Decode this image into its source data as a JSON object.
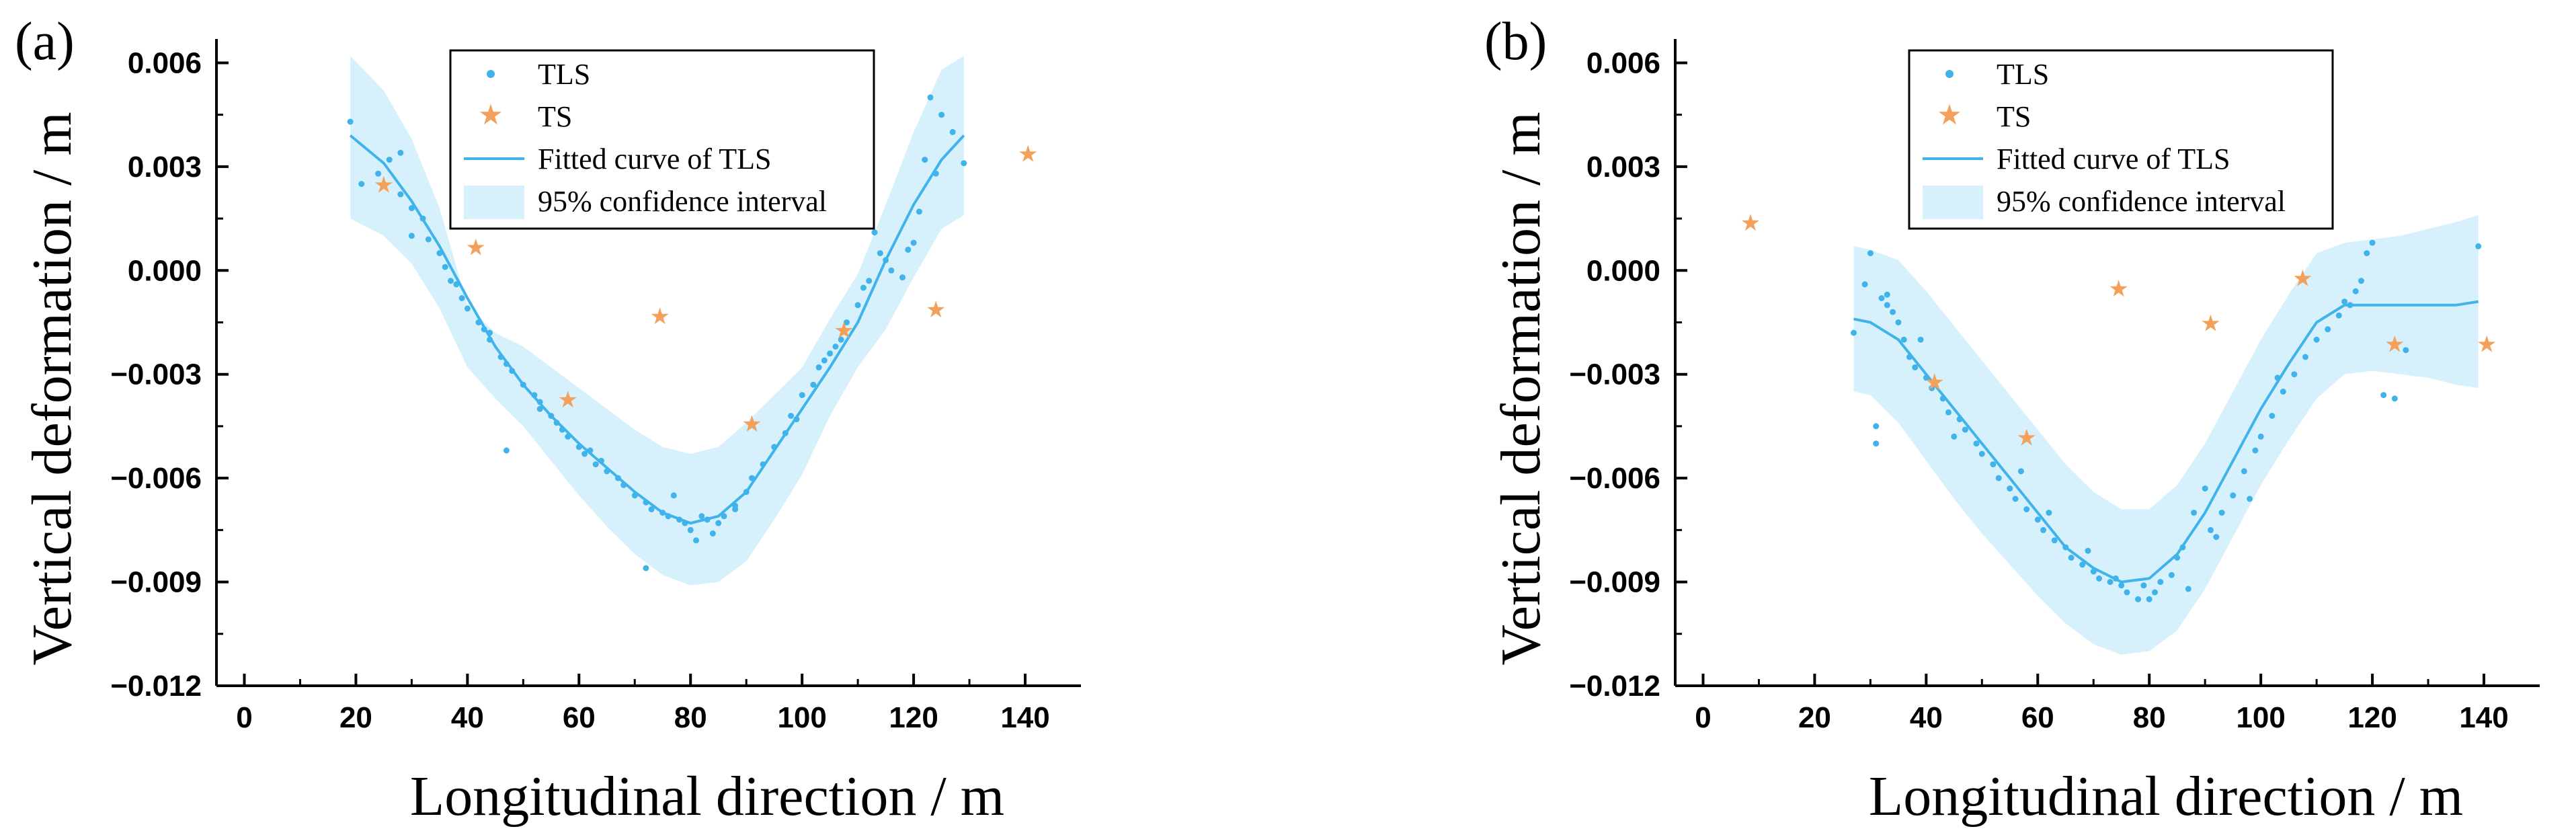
{
  "chart_data": [
    {
      "type": "scatter",
      "panel_label": "(a)",
      "xlabel": "Longitudinal direction / m",
      "ylabel": "Vertical deformation / m",
      "xlim": [
        -5,
        150
      ],
      "ylim": [
        -0.012,
        0.0063
      ],
      "x_ticks": [
        0,
        20,
        40,
        60,
        80,
        100,
        120,
        140
      ],
      "x_tick_labels": [
        "0",
        "20",
        "40",
        "60",
        "80",
        "100",
        "120",
        "140"
      ],
      "y_ticks": [
        0.006,
        0.003,
        0.0,
        -0.003,
        -0.006,
        -0.009,
        -0.012
      ],
      "y_tick_labels": [
        "0.006",
        "0.003",
        "0.000",
        "−0.003",
        "−0.006",
        "−0.009",
        "−0.012"
      ],
      "legend": {
        "position": "top-center",
        "entries": [
          "TLS",
          "TS",
          "Fitted curve of TLS",
          "95% confidence interval"
        ]
      },
      "colors": {
        "tls": "#3fb3ea",
        "ts": "#f2a05a",
        "fit": "#3fb3ea",
        "ci": "#d6f1fc"
      },
      "series": [
        {
          "name": "TLS",
          "kind": "points",
          "x": [
            19,
            21,
            24,
            26,
            28,
            30,
            32,
            33,
            35,
            36,
            38,
            39,
            40,
            42,
            43,
            44,
            46,
            47,
            48,
            50,
            52,
            53,
            55,
            57,
            58,
            60,
            61,
            63,
            65,
            67,
            68,
            70,
            72,
            73,
            75,
            76,
            78,
            79,
            80,
            81,
            82,
            83,
            85,
            86,
            88,
            90,
            91,
            93,
            95,
            97,
            98,
            100,
            102,
            103,
            105,
            107,
            108,
            110,
            111,
            113,
            114,
            116,
            118,
            119,
            121,
            122,
            123,
            125,
            127,
            129,
            47,
            72,
            64,
            84,
            37,
            56,
            99,
            106,
            115,
            120,
            30,
            44,
            62,
            88,
            112,
            124,
            28,
            77,
            53,
            104
          ],
          "y": [
            0.0043,
            0.0025,
            0.0028,
            0.0032,
            0.0034,
            0.0018,
            0.0015,
            0.0009,
            0.0005,
            0.0001,
            -0.0004,
            -0.0008,
            -0.0011,
            -0.0015,
            -0.0017,
            -0.002,
            -0.0025,
            -0.0027,
            -0.0029,
            -0.0033,
            -0.0036,
            -0.0038,
            -0.0042,
            -0.0046,
            -0.0048,
            -0.0051,
            -0.0053,
            -0.0056,
            -0.0058,
            -0.006,
            -0.0062,
            -0.0065,
            -0.0067,
            -0.0069,
            -0.007,
            -0.0071,
            -0.0072,
            -0.0073,
            -0.0075,
            -0.0078,
            -0.0071,
            -0.0072,
            -0.0073,
            -0.0071,
            -0.0069,
            -0.0064,
            -0.006,
            -0.0056,
            -0.0051,
            -0.0047,
            -0.0042,
            -0.0036,
            -0.0033,
            -0.0028,
            -0.0024,
            -0.002,
            -0.0015,
            -0.001,
            -0.0005,
            0.0011,
            0.0005,
            0.0,
            -0.0002,
            0.0006,
            0.0017,
            0.0032,
            0.005,
            0.0045,
            0.004,
            0.0031,
            -0.0052,
            -0.0086,
            -0.0055,
            -0.0076,
            -0.0003,
            -0.0044,
            -0.0043,
            -0.0022,
            0.0003,
            0.0008,
            0.001,
            -0.0018,
            -0.0052,
            -0.0068,
            -0.0003,
            0.0028,
            0.0022,
            -0.0065,
            -0.004,
            -0.0026
          ]
        },
        {
          "name": "TS",
          "kind": "points",
          "x": [
            25,
            41.5,
            58,
            74.5,
            91,
            107.5,
            124,
            140.5
          ],
          "y": [
            0.0025,
            0.0007,
            -0.0037,
            -0.0013,
            -0.0044,
            -0.0017,
            -0.0011,
            0.0034
          ]
        },
        {
          "name": "Fitted curve of TLS",
          "kind": "line",
          "x": [
            19,
            25,
            30,
            35,
            40,
            45,
            50,
            55,
            60,
            65,
            70,
            75,
            80,
            85,
            90,
            95,
            100,
            105,
            110,
            115,
            120,
            125,
            129
          ],
          "y": [
            0.0039,
            0.0031,
            0.002,
            0.0007,
            -0.0008,
            -0.0022,
            -0.0033,
            -0.0042,
            -0.005,
            -0.0057,
            -0.0064,
            -0.007,
            -0.0073,
            -0.0071,
            -0.0064,
            -0.0052,
            -0.004,
            -0.0028,
            -0.0015,
            0.0003,
            0.0019,
            0.0032,
            0.0039
          ]
        },
        {
          "name": "95% confidence interval",
          "kind": "band",
          "x": [
            19,
            25,
            30,
            35,
            40,
            45,
            50,
            55,
            60,
            65,
            70,
            75,
            80,
            85,
            90,
            95,
            100,
            105,
            110,
            115,
            120,
            125,
            129
          ],
          "upper": [
            0.0062,
            0.0052,
            0.0038,
            0.0018,
            -0.001,
            -0.0018,
            -0.0022,
            -0.0028,
            -0.0034,
            -0.004,
            -0.0046,
            -0.0051,
            -0.0053,
            -0.0051,
            -0.0044,
            -0.0036,
            -0.0028,
            -0.0014,
            -0.0001,
            0.0019,
            0.004,
            0.0058,
            0.0062
          ],
          "lower": [
            0.0015,
            0.001,
            0.0002,
            -0.0011,
            -0.0028,
            -0.0037,
            -0.0045,
            -0.0055,
            -0.0065,
            -0.0074,
            -0.0082,
            -0.0088,
            -0.0091,
            -0.009,
            -0.0084,
            -0.0072,
            -0.0059,
            -0.0042,
            -0.0028,
            -0.0017,
            -0.0002,
            0.0012,
            0.0016
          ]
        }
      ]
    },
    {
      "type": "scatter",
      "panel_label": "(b)",
      "xlabel": "Longitudinal direction / m",
      "ylabel": "Vertical deformation / m",
      "xlim": [
        -5,
        150
      ],
      "ylim": [
        -0.012,
        0.0063
      ],
      "x_ticks": [
        0,
        20,
        40,
        60,
        80,
        100,
        120,
        140
      ],
      "x_tick_labels": [
        "0",
        "20",
        "40",
        "60",
        "80",
        "100",
        "120",
        "140"
      ],
      "y_ticks": [
        0.006,
        0.003,
        0.0,
        -0.003,
        -0.006,
        -0.009,
        -0.012
      ],
      "y_tick_labels": [
        "0.006",
        "0.003",
        "0.000",
        "−0.003",
        "−0.006",
        "−0.009",
        "−0.012"
      ],
      "legend": {
        "position": "top-center",
        "entries": [
          "TLS",
          "TS",
          "Fitted curve of TLS",
          "95% confidence interval"
        ]
      },
      "colors": {
        "tls": "#3fb3ea",
        "ts": "#f2a05a",
        "fit": "#3fb3ea",
        "ci": "#d6f1fc"
      },
      "series": [
        {
          "name": "TLS",
          "kind": "points",
          "x": [
            27,
            29,
            30,
            31,
            32,
            33,
            34,
            35,
            36,
            37,
            38,
            40,
            41,
            43,
            44,
            46,
            47,
            49,
            50,
            52,
            53,
            55,
            56,
            58,
            60,
            61,
            63,
            65,
            66,
            68,
            70,
            71,
            73,
            75,
            76,
            78,
            79,
            81,
            82,
            84,
            85,
            86,
            88,
            90,
            91,
            93,
            95,
            97,
            99,
            100,
            102,
            104,
            106,
            108,
            110,
            112,
            114,
            116,
            117,
            118,
            119,
            120,
            124,
            126,
            139,
            33,
            45,
            57,
            69,
            80,
            92,
            103,
            115,
            122,
            31,
            39,
            62,
            74,
            87,
            98
          ],
          "y": [
            -0.0018,
            -0.0004,
            0.0005,
            -0.005,
            -0.0008,
            -0.001,
            -0.0012,
            -0.0015,
            -0.002,
            -0.0025,
            -0.0028,
            -0.0031,
            -0.0034,
            -0.0037,
            -0.0041,
            -0.0043,
            -0.0046,
            -0.005,
            -0.0053,
            -0.0056,
            -0.006,
            -0.0063,
            -0.0066,
            -0.0069,
            -0.0072,
            -0.0075,
            -0.0078,
            -0.008,
            -0.0083,
            -0.0085,
            -0.0087,
            -0.0089,
            -0.009,
            -0.0091,
            -0.0093,
            -0.0095,
            -0.0091,
            -0.0093,
            -0.009,
            -0.0088,
            -0.0083,
            -0.008,
            -0.007,
            -0.0063,
            -0.0075,
            -0.007,
            -0.0065,
            -0.0058,
            -0.0052,
            -0.0048,
            -0.0042,
            -0.0035,
            -0.003,
            -0.0025,
            -0.002,
            -0.0017,
            -0.0013,
            -0.001,
            -0.0006,
            -0.0003,
            0.0005,
            0.0008,
            -0.0037,
            -0.0023,
            0.0007,
            -0.0007,
            -0.0048,
            -0.0058,
            -0.0081,
            -0.0095,
            -0.0077,
            -0.0031,
            -0.0009,
            -0.0036,
            -0.0045,
            -0.002,
            -0.007,
            -0.0089,
            -0.0092,
            -0.0066
          ]
        },
        {
          "name": "TS",
          "kind": "points",
          "x": [
            8.5,
            41.5,
            58,
            74.5,
            91,
            107.5,
            124,
            140.5
          ],
          "y": [
            0.0014,
            -0.0032,
            -0.0048,
            -0.0005,
            -0.0015,
            -0.0002,
            -0.0021,
            -0.0021
          ]
        },
        {
          "name": "Fitted curve of TLS",
          "kind": "line",
          "x": [
            27,
            30,
            35,
            40,
            45,
            50,
            55,
            60,
            65,
            70,
            75,
            80,
            85,
            90,
            95,
            100,
            105,
            110,
            115,
            120,
            125,
            130,
            135,
            139
          ],
          "y": [
            -0.0014,
            -0.0015,
            -0.002,
            -0.003,
            -0.004,
            -0.005,
            -0.006,
            -0.007,
            -0.008,
            -0.0086,
            -0.009,
            -0.0089,
            -0.0082,
            -0.007,
            -0.0055,
            -0.004,
            -0.0027,
            -0.0015,
            -0.001,
            -0.001,
            -0.001,
            -0.001,
            -0.001,
            -0.0009
          ]
        },
        {
          "name": "95% confidence interval",
          "kind": "band",
          "x": [
            27,
            30,
            35,
            40,
            45,
            50,
            55,
            60,
            65,
            70,
            75,
            80,
            85,
            90,
            95,
            100,
            105,
            110,
            115,
            120,
            125,
            130,
            135,
            139
          ],
          "upper": [
            0.0007,
            0.0006,
            0.0003,
            -0.0006,
            -0.0016,
            -0.0026,
            -0.0036,
            -0.0046,
            -0.0056,
            -0.0064,
            -0.0069,
            -0.0069,
            -0.0062,
            -0.005,
            -0.0035,
            -0.002,
            -0.0007,
            0.0005,
            0.0008,
            0.0009,
            0.001,
            0.0012,
            0.0014,
            0.0016
          ],
          "lower": [
            -0.0035,
            -0.0036,
            -0.0044,
            -0.0055,
            -0.0066,
            -0.0076,
            -0.0085,
            -0.0094,
            -0.0102,
            -0.0108,
            -0.0111,
            -0.011,
            -0.0104,
            -0.0092,
            -0.0077,
            -0.0062,
            -0.0049,
            -0.0037,
            -0.003,
            -0.0029,
            -0.003,
            -0.0031,
            -0.0033,
            -0.0034
          ]
        }
      ]
    }
  ]
}
